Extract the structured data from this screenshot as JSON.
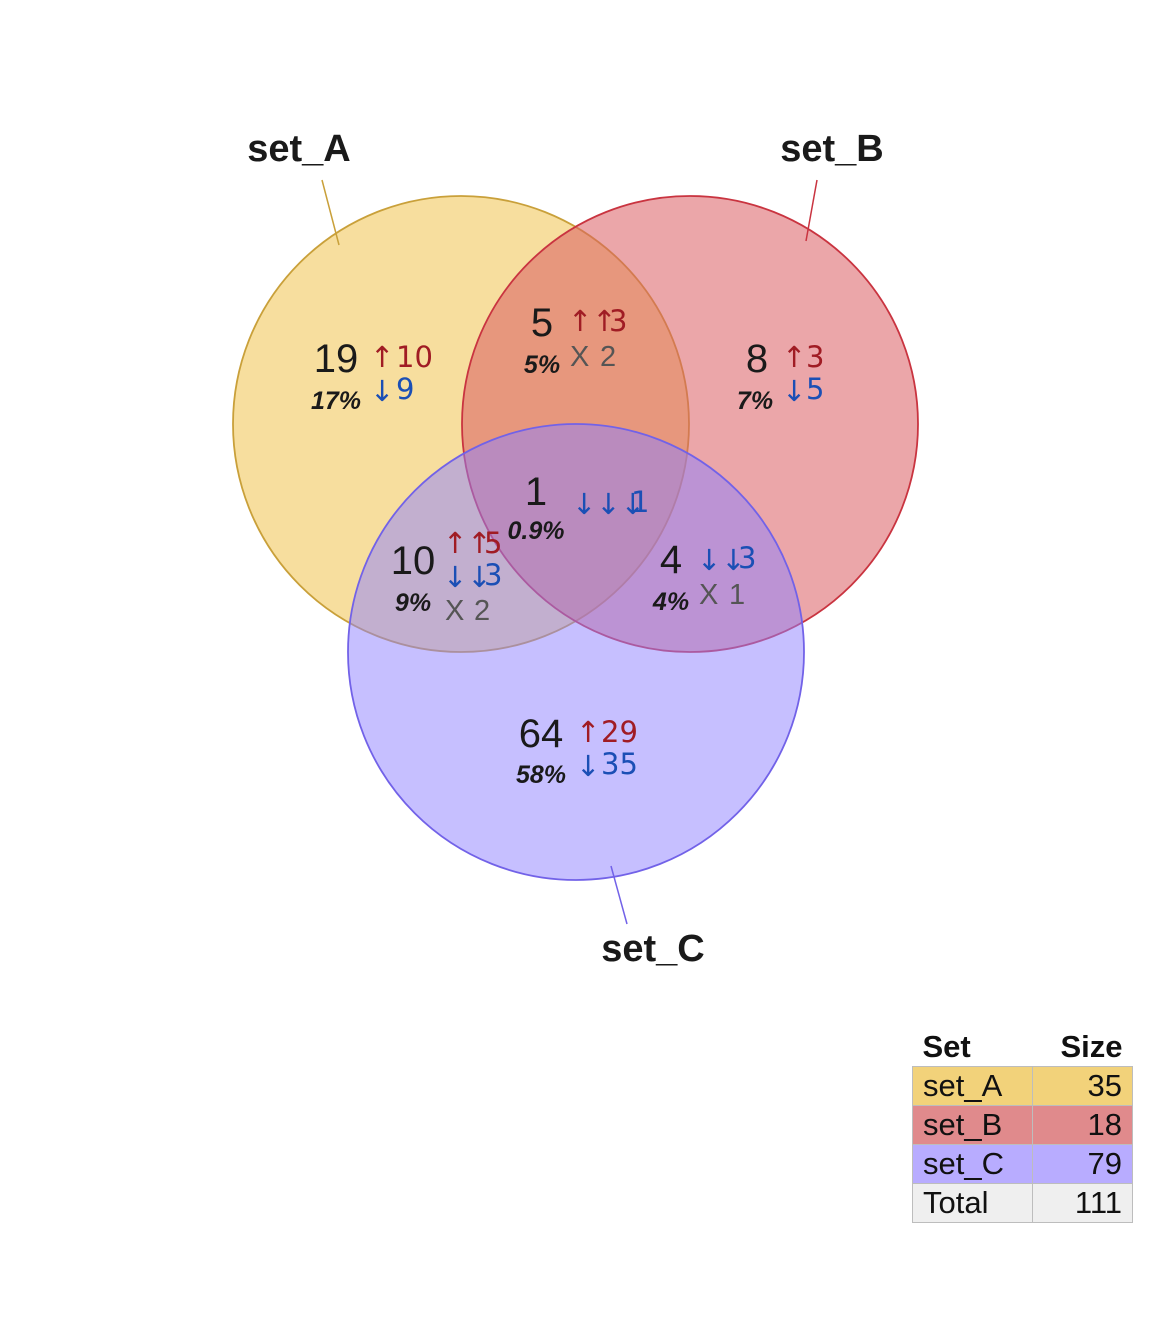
{
  "sets": [
    {
      "name": "set_A",
      "size": 35,
      "fill": "#F0C24F",
      "stroke": "#C9A03A",
      "legend_color": "#F2D27A"
    },
    {
      "name": "set_B",
      "size": 18,
      "fill": "#DA5C63",
      "stroke": "#C93440",
      "legend_color": "#E08A8C"
    },
    {
      "name": "set_C",
      "size": 79,
      "fill": "#8E7FFF",
      "stroke": "#7262E8",
      "legend_color": "#B8ACFF"
    }
  ],
  "total": {
    "label": "Total",
    "size": 111,
    "color": "#EFEFEF"
  },
  "legend": {
    "col_set": "Set",
    "col_size": "Size"
  },
  "regions": [
    {
      "id": "A_only",
      "count": "19",
      "pct": "17%",
      "up": "↑",
      "up_n": "10",
      "down": "↓",
      "down_n": "9"
    },
    {
      "id": "B_only",
      "count": "8",
      "pct": "7%",
      "up": "↑",
      "up_n": "3",
      "down": "↓",
      "down_n": "5"
    },
    {
      "id": "C_only",
      "count": "64",
      "pct": "58%",
      "up": "↑",
      "up_n": "29",
      "down": "↓",
      "down_n": "35"
    },
    {
      "id": "AB",
      "count": "5",
      "pct": "5%",
      "up": "↑↑",
      "up_n": "3",
      "mixed": "X",
      "mixed_n": "2"
    },
    {
      "id": "AC",
      "count": "10",
      "pct": "9%",
      "up": "↑↑",
      "up_n": "5",
      "down": "↓↓",
      "down_n": "3",
      "mixed": "X",
      "mixed_n": "2"
    },
    {
      "id": "BC",
      "count": "4",
      "pct": "4%",
      "down": "↓↓",
      "down_n": "3",
      "mixed": "X",
      "mixed_n": "1"
    },
    {
      "id": "ABC",
      "count": "1",
      "pct": "0.9%",
      "down": "↓↓↓",
      "down_n": "1"
    }
  ],
  "colors": {
    "up": "#A01C24",
    "down": "#1B4FB5",
    "mixed": "#555555"
  }
}
